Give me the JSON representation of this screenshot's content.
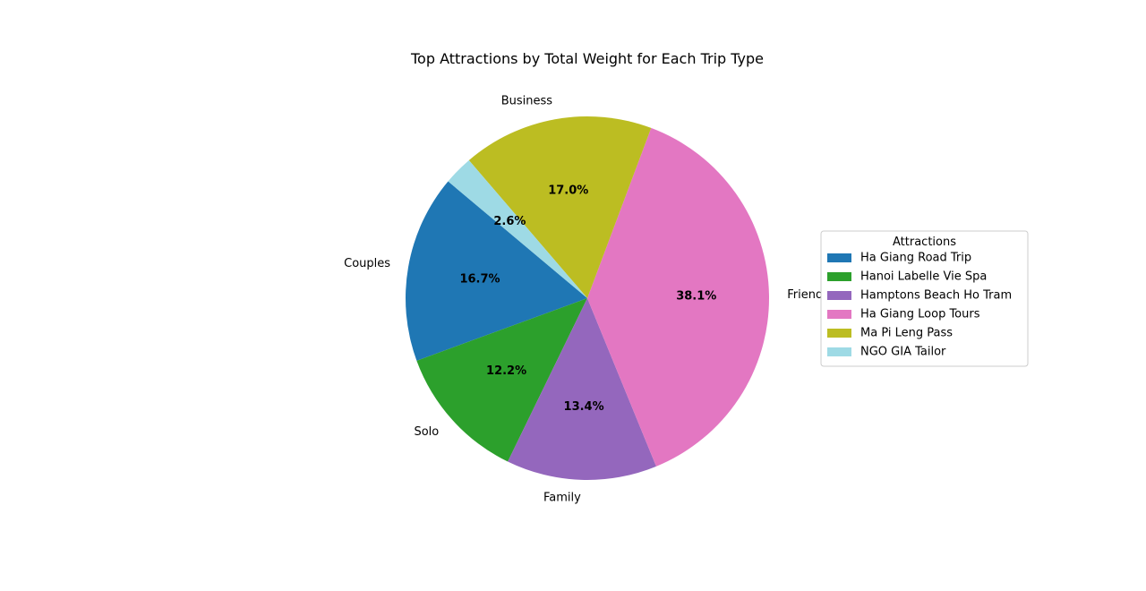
{
  "chart_data": {
    "type": "pie",
    "title": "Top Attractions by Total Weight for Each Trip Type",
    "slices": [
      {
        "category": "Couples",
        "attraction": "Ha Giang Road Trip",
        "value": 16.7,
        "pct_label": "16.7%",
        "color": "#1f77b4"
      },
      {
        "category": "Solo",
        "attraction": "Hanoi Labelle Vie Spa",
        "value": 12.2,
        "pct_label": "12.2%",
        "color": "#2ca02c"
      },
      {
        "category": "Family",
        "attraction": "Hamptons Beach Ho Tram",
        "value": 13.4,
        "pct_label": "13.4%",
        "color": "#9467bd"
      },
      {
        "category": "Friends",
        "attraction": "Ha Giang Loop Tours",
        "value": 38.1,
        "pct_label": "38.1%",
        "color": "#e377c2"
      },
      {
        "category": "Business",
        "attraction": "Ma Pi Leng Pass",
        "value": 17.0,
        "pct_label": "17.0%",
        "color": "#bcbd22"
      },
      {
        "category": "",
        "attraction": "NGO GIA Tailor",
        "value": 2.6,
        "pct_label": "2.6%",
        "color": "#9edae5"
      }
    ],
    "start_angle_deg": 140,
    "direction": "counterclockwise",
    "legend": {
      "title": "Attractions",
      "placement": "right",
      "entries": [
        "Ha Giang Road Trip",
        "Hanoi Labelle Vie Spa",
        "Hamptons Beach Ho Tram",
        "Ha Giang Loop Tours",
        "Ma Pi Leng Pass",
        "NGO GIA Tailor"
      ]
    }
  }
}
